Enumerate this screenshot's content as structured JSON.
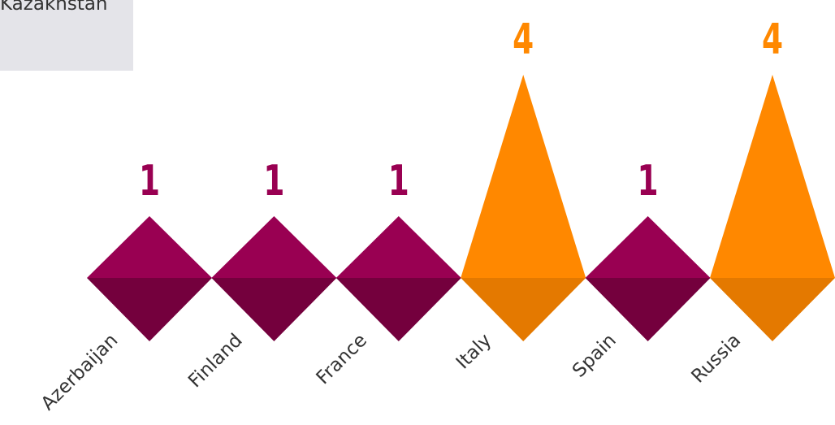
{
  "legend": {
    "label": "Kazakhstan"
  },
  "chart_data": {
    "type": "bar",
    "categories": [
      "Azerbaijan",
      "Finland",
      "France",
      "Italy",
      "Spain",
      "Russia"
    ],
    "values": [
      1,
      1,
      1,
      4,
      1,
      4
    ],
    "colors": {
      "low": "#990052",
      "low_shade": "#74003d",
      "high": "#ff8800",
      "high_shade": "#e47900"
    },
    "legend_placement": "top-left",
    "grid": false
  }
}
